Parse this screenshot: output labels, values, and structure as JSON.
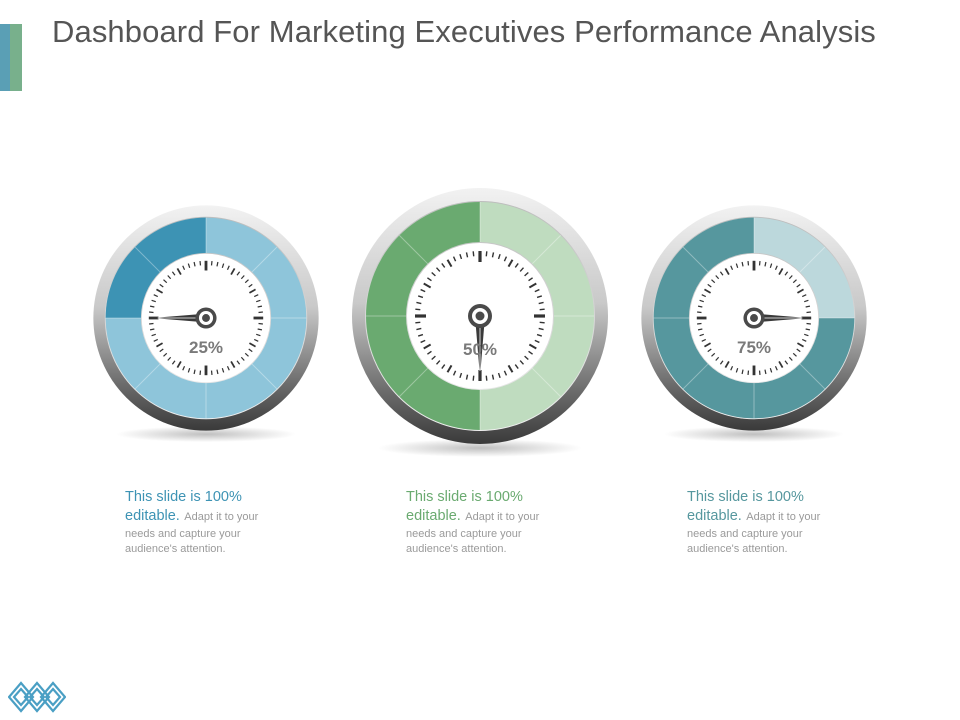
{
  "title": "Dashboard For Marketing Executives Performance Analysis",
  "gauges": [
    {
      "value_label": "25%",
      "fraction": 0.25,
      "color": "#3d93b4",
      "light": "#8ec5da",
      "caption_headline_1": "This slide is 100%",
      "caption_headline_2": "editable.",
      "caption_body_1": "Adapt it to your",
      "caption_body_2": "needs and capture your",
      "caption_body_3": "audience's attention."
    },
    {
      "value_label": "50%",
      "fraction": 0.5,
      "color": "#6aaa70",
      "light": "#bfdcbf",
      "caption_headline_1": "This slide is 100%",
      "caption_headline_2": "editable.",
      "caption_body_1": "Adapt it to your",
      "caption_body_2": "needs and capture your",
      "caption_body_3": "audience's attention."
    },
    {
      "value_label": "75%",
      "fraction": 0.75,
      "color": "#56979e",
      "light": "#bcd8dc",
      "caption_headline_1": "This slide is 100%",
      "caption_headline_2": "editable.",
      "caption_body_1": "Adapt it to your",
      "caption_body_2": "needs and capture your",
      "caption_body_3": "audience's attention."
    }
  ],
  "colors": {
    "accent_blue": "#5a9fb5",
    "accent_green": "#78b08c",
    "logo": "#4a9fc4"
  },
  "icons": {
    "logo": "diamond-chain-logo"
  }
}
